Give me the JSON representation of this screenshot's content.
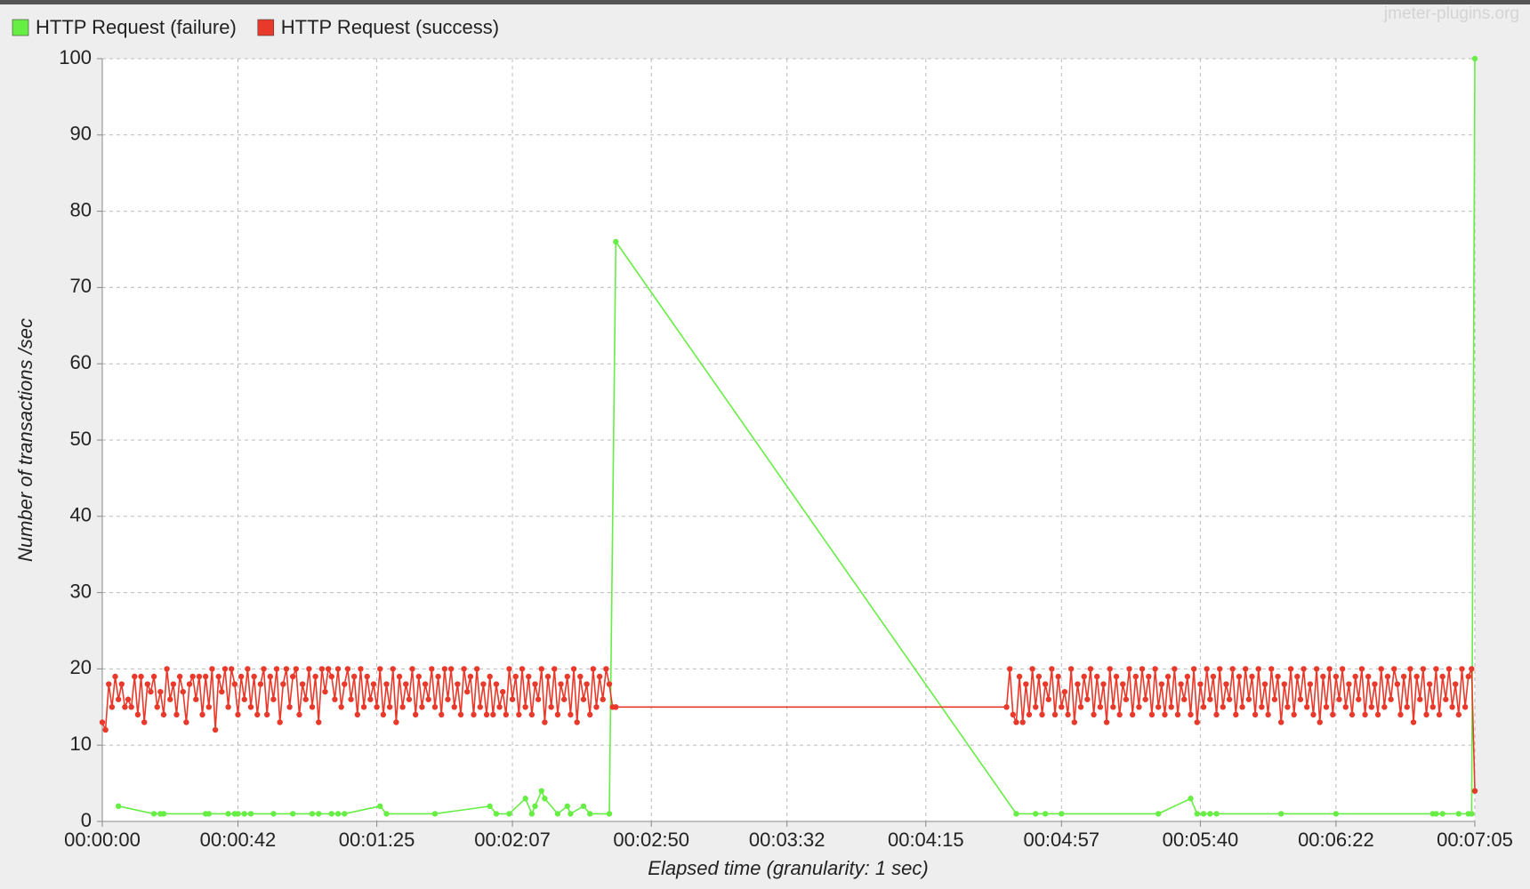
{
  "chart_data": {
    "type": "line",
    "watermark": "jmeter-plugins.org",
    "xlabel": "Elapsed time (granularity: 1 sec)",
    "ylabel": "Number of transactions /sec",
    "xlim": [
      0,
      425
    ],
    "ylim": [
      0,
      100
    ],
    "xticks": [
      {
        "value": 0,
        "label": "00:00:00"
      },
      {
        "value": 42,
        "label": "00:00:42"
      },
      {
        "value": 85,
        "label": "00:01:25"
      },
      {
        "value": 127,
        "label": "00:02:07"
      },
      {
        "value": 170,
        "label": "00:02:50"
      },
      {
        "value": 212,
        "label": "00:03:32"
      },
      {
        "value": 255,
        "label": "00:04:15"
      },
      {
        "value": 297,
        "label": "00:04:57"
      },
      {
        "value": 340,
        "label": "00:05:40"
      },
      {
        "value": 382,
        "label": "00:06:22"
      },
      {
        "value": 425,
        "label": "00:07:05"
      }
    ],
    "yticks": [
      0,
      10,
      20,
      30,
      40,
      50,
      60,
      70,
      80,
      90,
      100
    ],
    "grid": true,
    "legend": "top-left",
    "series": [
      {
        "name": "HTTP Request (failure)",
        "color": "#66ee44",
        "x": [
          5,
          16,
          18,
          19,
          32,
          33,
          39,
          41,
          42,
          44,
          46,
          53,
          59,
          65,
          67,
          71,
          73,
          75,
          86,
          88,
          103,
          120,
          122,
          126,
          131,
          133,
          134,
          136,
          137,
          141,
          144,
          145,
          149,
          151,
          157,
          159,
          283,
          289,
          292,
          297,
          327,
          337,
          339,
          341,
          343,
          345,
          365,
          382,
          412,
          413,
          415,
          420,
          423,
          424,
          425
        ],
        "values": [
          2,
          1,
          1,
          1,
          1,
          1,
          1,
          1,
          1,
          1,
          1,
          1,
          1,
          1,
          1,
          1,
          1,
          1,
          2,
          1,
          1,
          2,
          1,
          1,
          3,
          1,
          2,
          4,
          3,
          1,
          2,
          1,
          2,
          1,
          1,
          76,
          1,
          1,
          1,
          1,
          1,
          3,
          1,
          1,
          1,
          1,
          1,
          1,
          1,
          1,
          1,
          1,
          1,
          1,
          100
        ]
      },
      {
        "name": "HTTP Request (success)",
        "color": "#e8392b",
        "x": [
          0,
          1,
          2,
          3,
          4,
          5,
          6,
          7,
          8,
          9,
          10,
          11,
          12,
          13,
          14,
          15,
          16,
          17,
          18,
          19,
          20,
          21,
          22,
          23,
          24,
          25,
          26,
          27,
          28,
          29,
          30,
          31,
          32,
          33,
          34,
          35,
          36,
          37,
          38,
          39,
          40,
          41,
          42,
          43,
          44,
          45,
          46,
          47,
          48,
          49,
          50,
          51,
          52,
          53,
          54,
          55,
          56,
          57,
          58,
          59,
          60,
          61,
          62,
          63,
          64,
          65,
          66,
          67,
          68,
          69,
          70,
          71,
          72,
          73,
          74,
          75,
          76,
          77,
          78,
          79,
          80,
          81,
          82,
          83,
          84,
          85,
          86,
          87,
          88,
          89,
          90,
          91,
          92,
          93,
          94,
          95,
          96,
          97,
          98,
          99,
          100,
          101,
          102,
          103,
          104,
          105,
          106,
          107,
          108,
          109,
          110,
          111,
          112,
          113,
          114,
          115,
          116,
          117,
          118,
          119,
          120,
          121,
          122,
          123,
          124,
          125,
          126,
          127,
          128,
          129,
          130,
          131,
          132,
          133,
          134,
          135,
          136,
          137,
          138,
          139,
          140,
          141,
          142,
          143,
          144,
          145,
          146,
          147,
          148,
          149,
          150,
          151,
          152,
          153,
          154,
          155,
          156,
          157,
          158,
          159,
          280,
          281,
          282,
          283,
          284,
          285,
          286,
          287,
          288,
          289,
          290,
          291,
          292,
          293,
          294,
          295,
          296,
          297,
          298,
          299,
          300,
          301,
          302,
          303,
          304,
          305,
          306,
          307,
          308,
          309,
          310,
          311,
          312,
          313,
          314,
          315,
          316,
          317,
          318,
          319,
          320,
          321,
          322,
          323,
          324,
          325,
          326,
          327,
          328,
          329,
          330,
          331,
          332,
          333,
          334,
          335,
          336,
          337,
          338,
          339,
          340,
          341,
          342,
          343,
          344,
          345,
          346,
          347,
          348,
          349,
          350,
          351,
          352,
          353,
          354,
          355,
          356,
          357,
          358,
          359,
          360,
          361,
          362,
          363,
          364,
          365,
          366,
          367,
          368,
          369,
          370,
          371,
          372,
          373,
          374,
          375,
          376,
          377,
          378,
          379,
          380,
          381,
          382,
          383,
          384,
          385,
          386,
          387,
          388,
          389,
          390,
          391,
          392,
          393,
          394,
          395,
          396,
          397,
          398,
          399,
          400,
          401,
          402,
          403,
          404,
          405,
          406,
          407,
          408,
          409,
          410,
          411,
          412,
          413,
          414,
          415,
          416,
          417,
          418,
          419,
          420,
          421,
          422,
          423,
          424,
          425
        ],
        "values": [
          13,
          12,
          18,
          15,
          19,
          16,
          18,
          15,
          16,
          15,
          19,
          14,
          19,
          13,
          18,
          17,
          19,
          15,
          17,
          14,
          20,
          16,
          18,
          14,
          19,
          17,
          13,
          18,
          19,
          16,
          19,
          14,
          19,
          15,
          20,
          12,
          19,
          17,
          20,
          15,
          20,
          18,
          14,
          19,
          16,
          20,
          15,
          19,
          14,
          18,
          20,
          14,
          19,
          16,
          20,
          13,
          18,
          20,
          15,
          19,
          20,
          14,
          18,
          16,
          20,
          15,
          19,
          13,
          20,
          17,
          20,
          19,
          16,
          20,
          15,
          18,
          20,
          16,
          19,
          14,
          20,
          15,
          19,
          16,
          18,
          15,
          20,
          14,
          18,
          15,
          20,
          13,
          19,
          15,
          18,
          16,
          20,
          14,
          19,
          15,
          18,
          16,
          20,
          15,
          19,
          14,
          20,
          16,
          20,
          15,
          18,
          14,
          20,
          17,
          19,
          14,
          20,
          15,
          18,
          14,
          19,
          14,
          18,
          15,
          17,
          14,
          20,
          16,
          19,
          14,
          20,
          15,
          19,
          14,
          18,
          16,
          20,
          13,
          19,
          15,
          20,
          14,
          18,
          16,
          19,
          14,
          20,
          13,
          19,
          16,
          18,
          14,
          20,
          15,
          19,
          16,
          20,
          18,
          15,
          15,
          15,
          20,
          14,
          13,
          19,
          13,
          18,
          14,
          20,
          15,
          19,
          14,
          18,
          16,
          20,
          14,
          19,
          15,
          17,
          14,
          20,
          13,
          18,
          15,
          19,
          16,
          20,
          14,
          19,
          15,
          18,
          13,
          20,
          15,
          19,
          14,
          18,
          16,
          20,
          14,
          19,
          15,
          20,
          16,
          19,
          14,
          20,
          15,
          18,
          14,
          19,
          15,
          20,
          14,
          18,
          16,
          19,
          14,
          20,
          13,
          18,
          15,
          20,
          16,
          19,
          14,
          20,
          15,
          18,
          16,
          20,
          14,
          19,
          15,
          20,
          16,
          19,
          14,
          20,
          15,
          18,
          14,
          20,
          16,
          19,
          13,
          18,
          15,
          20,
          14,
          19,
          16,
          20,
          15,
          18,
          14,
          20,
          13,
          19,
          15,
          20,
          14,
          19,
          16,
          20,
          15,
          18,
          14,
          19,
          16,
          20,
          14,
          19,
          15,
          18,
          14,
          20,
          15,
          19,
          16,
          20,
          18,
          14,
          19,
          15,
          20,
          13,
          19,
          16,
          20,
          14,
          18,
          15,
          20,
          14,
          19,
          16,
          20,
          15,
          18,
          14,
          20,
          15,
          19,
          20,
          4
        ]
      }
    ]
  }
}
